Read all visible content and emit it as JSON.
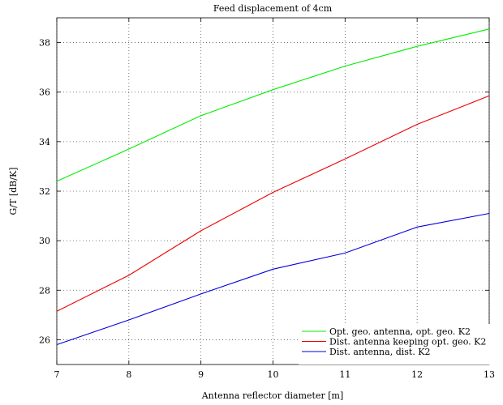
{
  "chart_data": {
    "type": "line",
    "title": "Feed displacement of 4cm",
    "xlabel": "Antenna reflector diameter [m]",
    "ylabel": "G/T [dB/K]",
    "xlim": [
      7,
      13
    ],
    "ylim": [
      25,
      39
    ],
    "xticks": [
      7,
      8,
      9,
      10,
      11,
      12,
      13
    ],
    "yticks": [
      26,
      28,
      30,
      32,
      34,
      36,
      38
    ],
    "grid": true,
    "legend_position": "bottom-right",
    "x": [
      7,
      8,
      9,
      10,
      11,
      12,
      13
    ],
    "series": [
      {
        "name": "Opt. geo. antenna, opt. geo. K2",
        "color": "#00ee00",
        "values": [
          32.4,
          33.7,
          35.05,
          36.1,
          37.05,
          37.85,
          38.55
        ]
      },
      {
        "name": "Dist. antenna keeping opt. geo. K2",
        "color": "#ee0000",
        "values": [
          27.15,
          28.6,
          30.4,
          31.95,
          33.3,
          34.7,
          35.85
        ]
      },
      {
        "name": "Dist. antenna, dist. K2",
        "color": "#0000dd",
        "values": [
          25.8,
          26.8,
          27.85,
          28.85,
          29.5,
          30.55,
          31.1
        ]
      }
    ]
  }
}
